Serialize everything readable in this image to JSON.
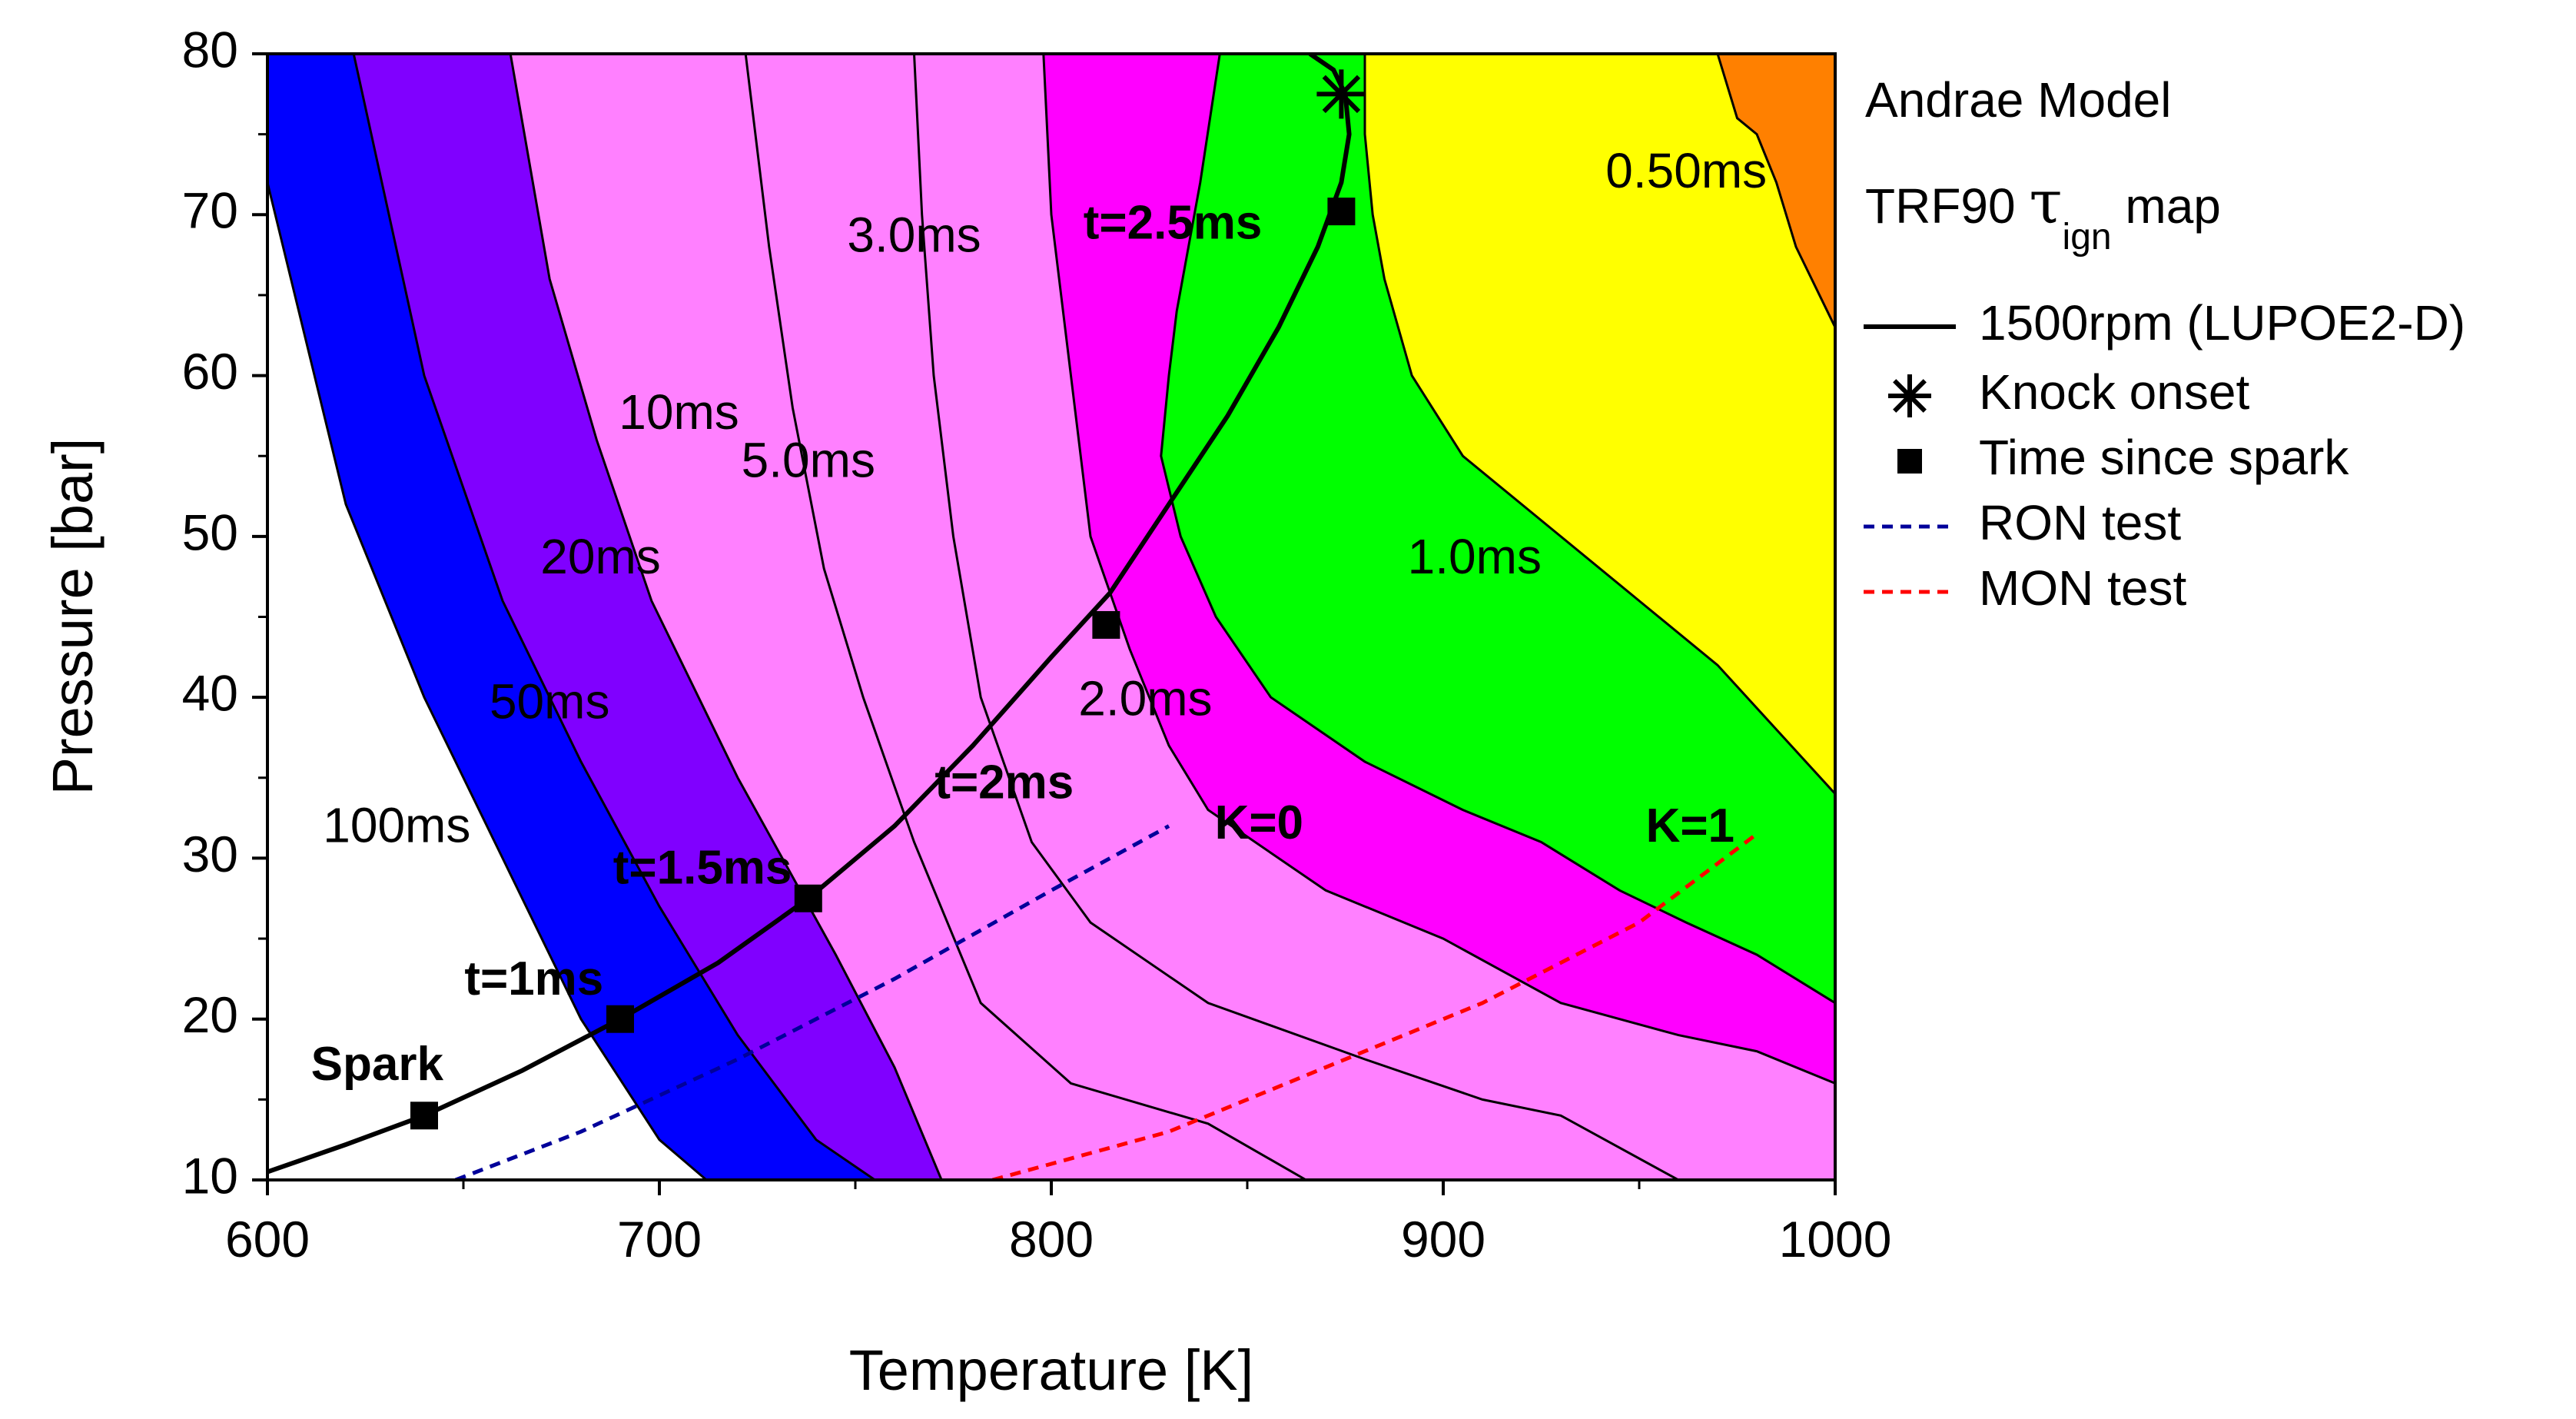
{
  "chart_data": {
    "type": "contour",
    "title": "Andrae Model",
    "subtitle_prefix": "TRF90 ",
    "subtitle_tau": "τ",
    "subtitle_sub": "ign",
    "subtitle_suffix": " map",
    "xlabel": "Temperature [K]",
    "ylabel": "Pressure [bar]",
    "xlim": [
      600,
      1000
    ],
    "ylim": [
      10,
      80
    ],
    "x_ticks": [
      600,
      700,
      800,
      900,
      1000
    ],
    "y_ticks": [
      10,
      20,
      30,
      40,
      50,
      60,
      70,
      80
    ],
    "colors": {
      "white": "#ffffff",
      "blue": "#0000ff",
      "violet": "#8000ff",
      "lightpink": "#ff80ff",
      "magenta": "#ff00ff",
      "green": "#00ff00",
      "yellow": "#ffff00",
      "orange": "#ff8000",
      "red": "#ff0000",
      "ron": "#00009a",
      "mon": "#ff0000"
    },
    "contours": [
      {
        "label": "100ms",
        "label_pos": [
          633,
          31.8
        ],
        "points": [
          [
            600,
            72
          ],
          [
            620,
            52
          ],
          [
            640,
            40
          ],
          [
            660,
            30
          ],
          [
            680,
            20
          ],
          [
            700,
            12.5
          ],
          [
            712,
            10
          ]
        ]
      },
      {
        "label": "50ms",
        "label_pos": [
          672,
          39.5
        ],
        "points": [
          [
            622,
            80
          ],
          [
            640,
            60
          ],
          [
            660,
            46
          ],
          [
            680,
            36
          ],
          [
            700,
            27
          ],
          [
            720,
            19
          ],
          [
            740,
            12.5
          ],
          [
            755,
            10
          ]
        ]
      },
      {
        "label": "20ms",
        "label_pos": [
          685,
          48.5
        ],
        "points": [
          [
            662,
            80
          ],
          [
            672,
            66
          ],
          [
            684,
            56
          ],
          [
            698,
            46
          ],
          [
            720,
            35
          ],
          [
            745,
            24
          ],
          [
            760,
            17
          ],
          [
            772,
            10
          ]
        ]
      },
      {
        "label": "10ms",
        "label_pos": [
          705,
          57.5
        ],
        "points": [
          [
            722,
            80
          ],
          [
            728,
            68
          ],
          [
            734,
            58
          ],
          [
            742,
            48
          ],
          [
            752,
            40
          ],
          [
            765,
            31
          ],
          [
            782,
            21
          ],
          [
            805,
            16
          ],
          [
            840,
            13.5
          ],
          [
            865,
            10
          ]
        ]
      },
      {
        "label": "5.0ms",
        "label_pos": [
          738,
          54.5
        ],
        "points": [
          [
            765,
            80
          ],
          [
            767,
            70
          ],
          [
            770,
            60
          ],
          [
            775,
            50
          ],
          [
            782,
            40
          ],
          [
            795,
            31
          ],
          [
            810,
            26
          ],
          [
            840,
            21
          ],
          [
            880,
            17.5
          ],
          [
            910,
            15
          ],
          [
            930,
            14
          ],
          [
            960,
            10
          ]
        ]
      },
      {
        "label": "3.0ms",
        "label_pos": [
          765,
          68.5
        ],
        "points": [
          [
            798,
            80
          ],
          [
            800,
            70
          ],
          [
            805,
            60
          ],
          [
            810,
            50
          ],
          [
            820,
            43
          ],
          [
            830,
            37
          ],
          [
            840,
            33
          ],
          [
            870,
            28
          ],
          [
            900,
            25
          ],
          [
            930,
            21
          ],
          [
            960,
            19
          ],
          [
            980,
            18
          ],
          [
            1000,
            16
          ]
        ]
      },
      {
        "label": "2.0ms",
        "label_pos": [
          824,
          39.7
        ],
        "points": [
          [
            843,
            80
          ],
          [
            838,
            72
          ],
          [
            835,
            68
          ],
          [
            832,
            64
          ],
          [
            830,
            60
          ],
          [
            828,
            55
          ],
          [
            833,
            50
          ],
          [
            842,
            45
          ],
          [
            856,
            40
          ],
          [
            880,
            36
          ],
          [
            905,
            33
          ],
          [
            925,
            31
          ],
          [
            945,
            28
          ],
          [
            962,
            26
          ],
          [
            980,
            24
          ],
          [
            1000,
            21
          ]
        ]
      },
      {
        "label": "1.0ms",
        "label_pos": [
          908,
          48.5
        ],
        "points": [
          [
            880,
            80
          ],
          [
            880,
            75
          ],
          [
            882,
            70
          ],
          [
            885,
            66
          ],
          [
            892,
            60
          ],
          [
            905,
            55
          ],
          [
            930,
            50
          ],
          [
            950,
            46
          ],
          [
            970,
            42
          ],
          [
            985,
            38
          ],
          [
            1000,
            34
          ]
        ]
      },
      {
        "label": "0.50ms",
        "label_pos": [
          962,
          72.5
        ],
        "points": [
          [
            970,
            80
          ],
          [
            975,
            76
          ],
          [
            980,
            75
          ],
          [
            985,
            72
          ],
          [
            990,
            68
          ],
          [
            1000,
            63
          ]
        ]
      }
    ],
    "series": [
      {
        "name": "1500rpm (LUPOE2-D)",
        "style": "solid",
        "x": [
          600,
          620,
          640,
          665,
          690,
          715,
          738,
          760,
          780,
          800,
          815,
          830,
          845,
          858,
          868,
          874,
          876,
          875,
          872,
          866
        ],
        "y": [
          10.5,
          12.2,
          14.0,
          16.8,
          20.0,
          23.5,
          27.5,
          32.0,
          37.0,
          42.5,
          46.5,
          52.0,
          57.5,
          63.0,
          68.0,
          72.0,
          75.0,
          77.5,
          79.0,
          80.0
        ]
      },
      {
        "name": "RON test",
        "style": "dash",
        "x": [
          648,
          680,
          720,
          760,
          800,
          830
        ],
        "y": [
          10,
          13,
          17.5,
          22.5,
          28,
          32
        ]
      },
      {
        "name": "MON test",
        "style": "dash",
        "x": [
          785,
          830,
          870,
          910,
          950,
          980
        ],
        "y": [
          10,
          13,
          17,
          21,
          26,
          31.5
        ]
      }
    ],
    "knock_onset": {
      "name": "Knock onset",
      "x": 874,
      "y": 77.5
    },
    "time_since_spark": {
      "name": "Time since spark",
      "points": [
        {
          "label": "Spark",
          "x": 640,
          "y": 14.0,
          "label_pos": [
            628,
            17.0
          ]
        },
        {
          "label": "t=1ms",
          "x": 690,
          "y": 20.0,
          "label_pos": [
            668,
            22.3
          ]
        },
        {
          "label": "t=1.5ms",
          "x": 738,
          "y": 27.5,
          "label_pos": [
            711,
            29.2
          ]
        },
        {
          "label": "t=2ms",
          "x": 814,
          "y": 44.5,
          "label_pos": [
            788,
            34.5
          ]
        },
        {
          "label": "t=2.5ms",
          "x": 874,
          "y": 70.2,
          "label_pos": [
            831,
            69.3
          ]
        }
      ]
    },
    "annotations": [
      {
        "text": "K=0",
        "x": 853,
        "y": 32.0
      },
      {
        "text": "K=1",
        "x": 963,
        "y": 31.8
      }
    ],
    "legend": [
      {
        "label": "1500rpm (LUPOE2-D)",
        "kind": "solid"
      },
      {
        "label": "Knock onset",
        "kind": "asterisk"
      },
      {
        "label": "Time since spark",
        "kind": "square"
      },
      {
        "label": "RON test",
        "kind": "dash-ron"
      },
      {
        "label": "MON test",
        "kind": "dash-mon"
      }
    ]
  }
}
